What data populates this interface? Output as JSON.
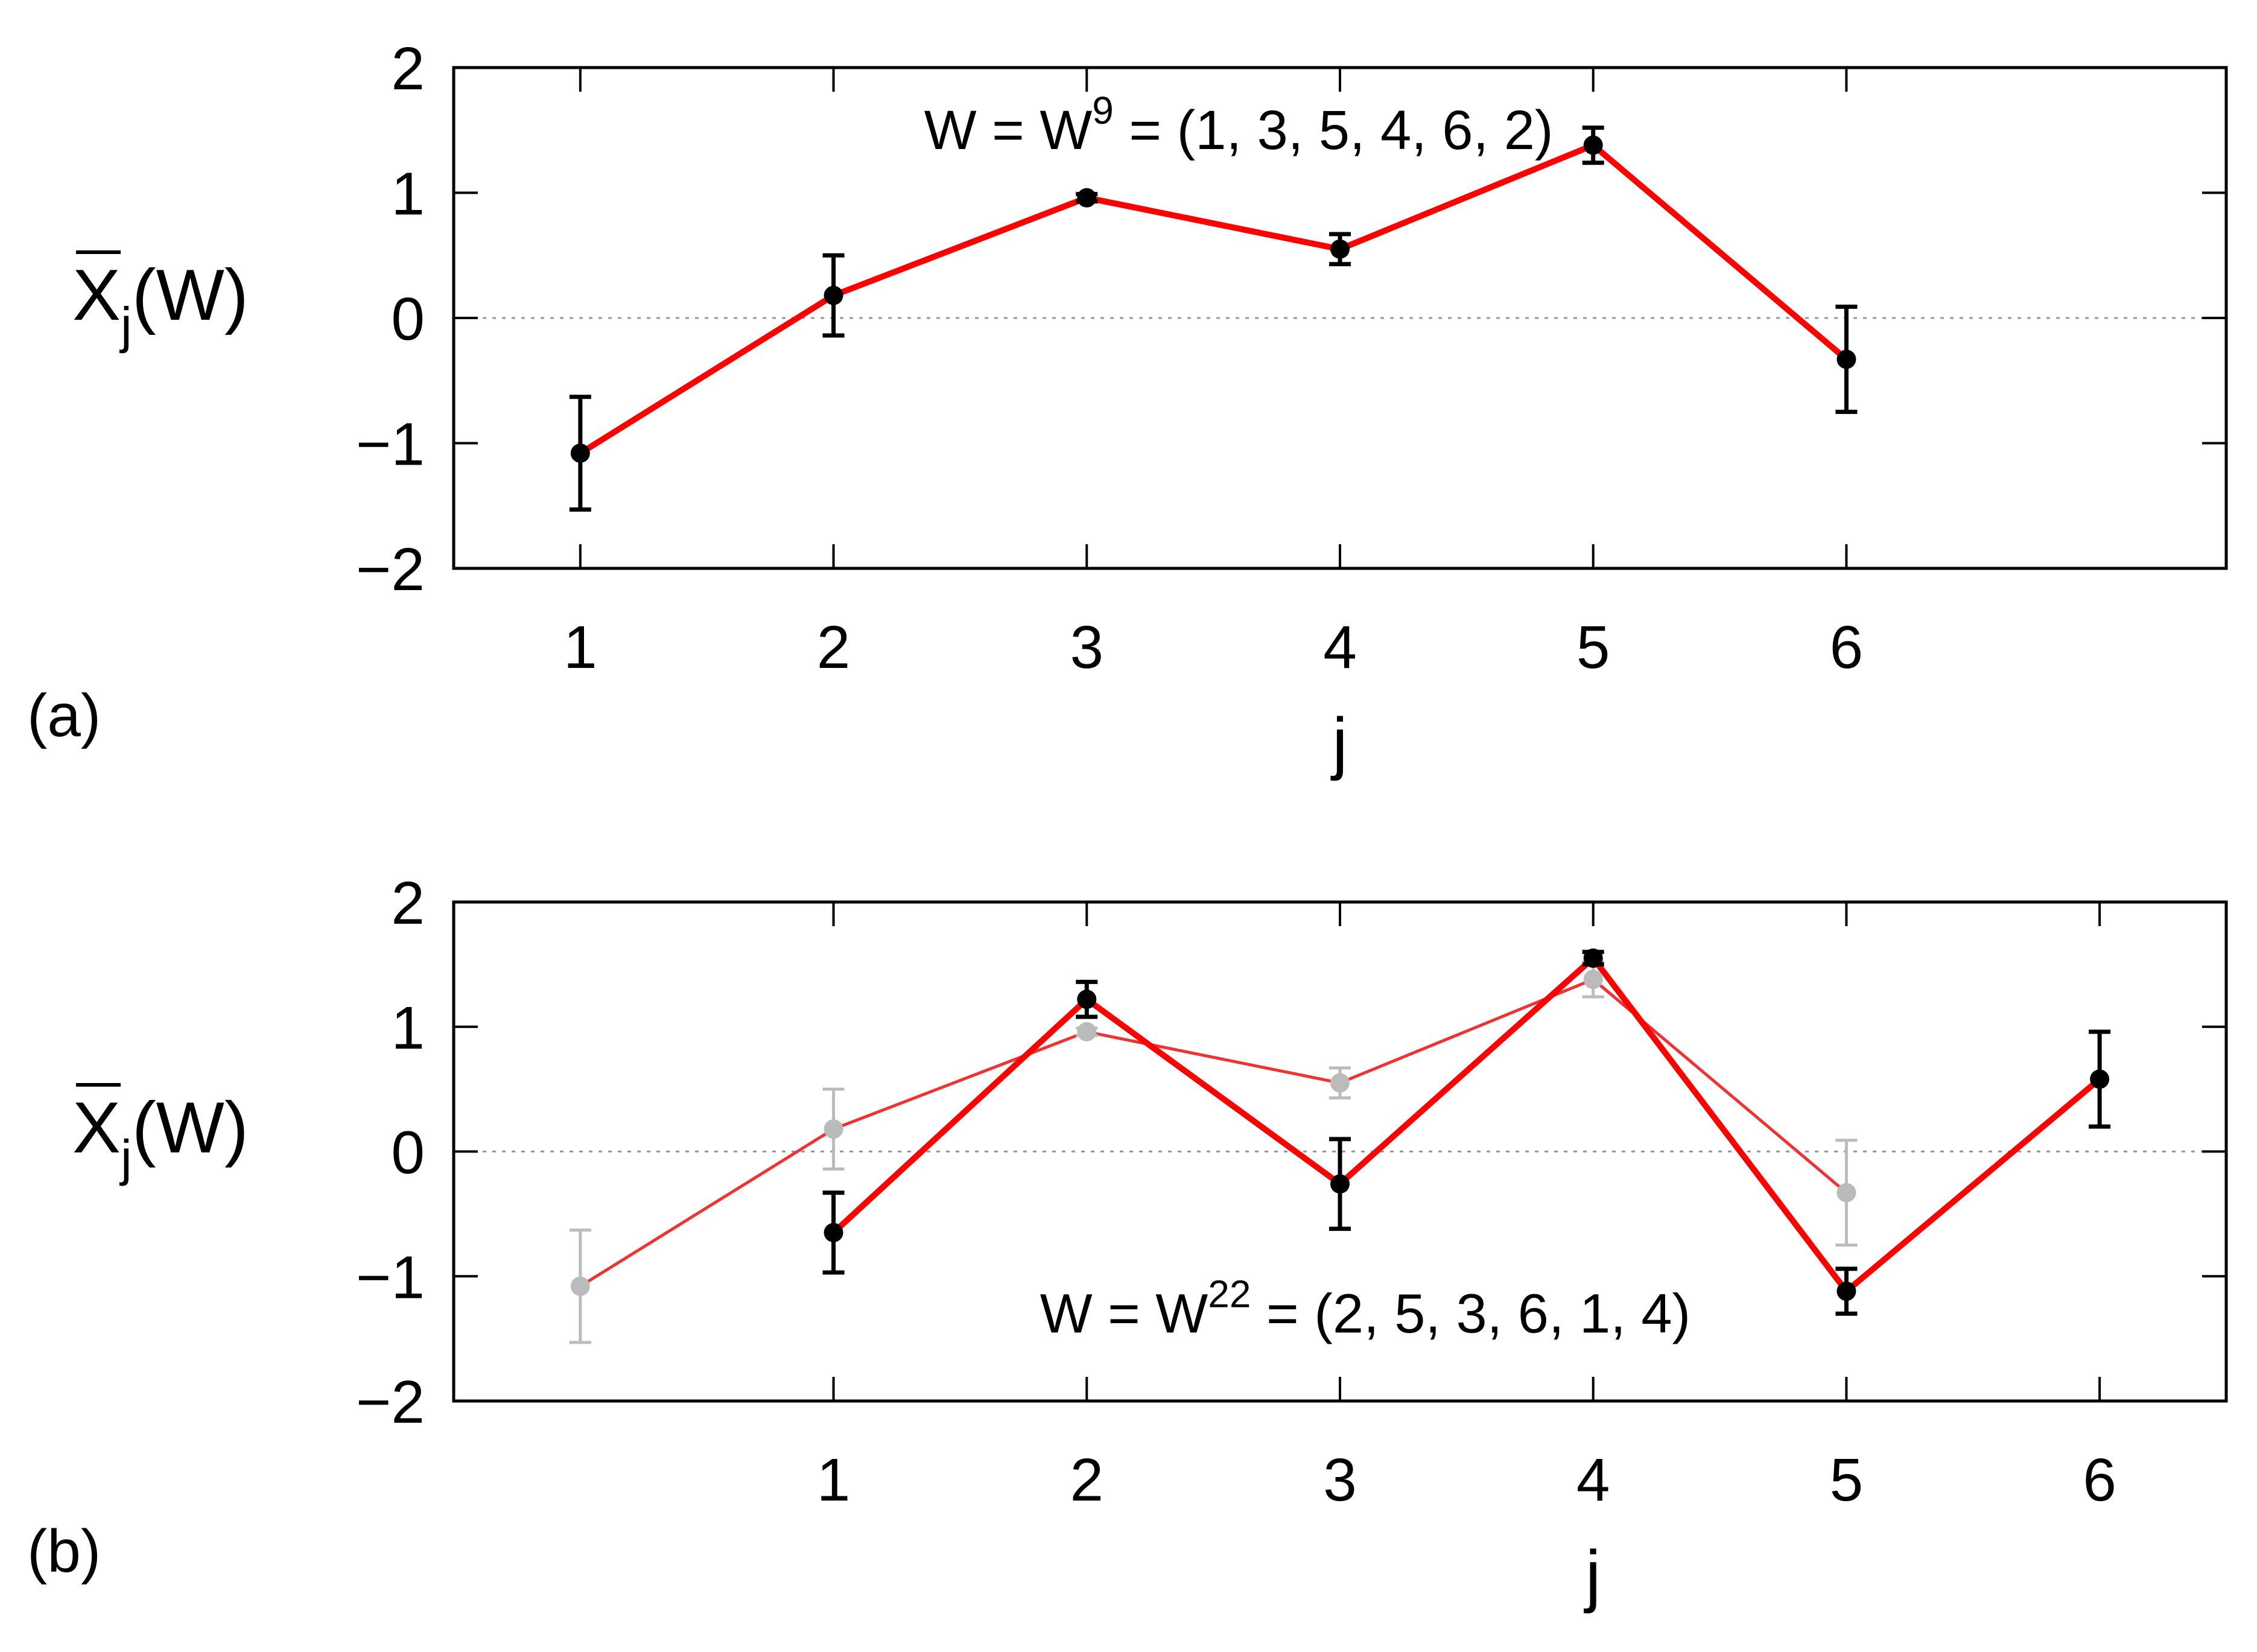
{
  "chart_data": [
    {
      "type": "line",
      "panel_label": "(a)",
      "xlabel": "j",
      "ylabel": {
        "bar_letter": "X",
        "subscript": "j",
        "rest": "(W)"
      },
      "ylim": [
        -2,
        2
      ],
      "yticks": [
        -2,
        -1,
        0,
        1,
        2
      ],
      "ytick_labels": [
        "−2",
        "−1",
        "0",
        "1",
        "2"
      ],
      "xlim": [
        0.5,
        7.5
      ],
      "xticks": [
        1,
        2,
        3,
        4,
        5,
        6
      ],
      "xtick_labels": [
        "1",
        "2",
        "3",
        "4",
        "5",
        "6"
      ],
      "zero_line": true,
      "annotation": {
        "prefix": "W = W",
        "sup": "9",
        "suffix": " = (1, 3, 5, 4, 6, 2)",
        "x": 3.6,
        "y": 1.35
      },
      "series": [
        {
          "style": "primary",
          "color": "#ff0000",
          "marker_color": "#000000",
          "x": [
            1,
            2,
            3,
            4,
            5,
            6
          ],
          "values": [
            -1.08,
            0.18,
            0.96,
            0.55,
            1.38,
            -0.33
          ],
          "errors": [
            0.45,
            0.32,
            0.03,
            0.12,
            0.14,
            0.42
          ]
        }
      ]
    },
    {
      "type": "line",
      "panel_label": "(b)",
      "xlabel": "j",
      "ylabel": {
        "bar_letter": "X",
        "subscript": "j",
        "rest": "(W)"
      },
      "ylim": [
        -2,
        2
      ],
      "yticks": [
        -2,
        -1,
        0,
        1,
        2
      ],
      "ytick_labels": [
        "−2",
        "−1",
        "0",
        "1",
        "2"
      ],
      "xlim": [
        -0.5,
        6.5
      ],
      "xticks": [
        1,
        2,
        3,
        4,
        5,
        6
      ],
      "xtick_labels": [
        "1",
        "2",
        "3",
        "4",
        "5",
        "6"
      ],
      "zero_line": true,
      "annotation": {
        "prefix": "W = W",
        "sup": "22",
        "suffix": " = (2, 5, 3, 6, 1, 4)",
        "x": 3.1,
        "y": -1.45
      },
      "series": [
        {
          "style": "secondary",
          "color": "#ee3333",
          "marker_color": "#bbbbbb",
          "x": [
            0,
            1,
            2,
            3,
            4,
            5
          ],
          "values": [
            -1.08,
            0.18,
            0.96,
            0.55,
            1.38,
            -0.33
          ],
          "errors": [
            0.45,
            0.32,
            0.03,
            0.12,
            0.14,
            0.42
          ]
        },
        {
          "style": "primary",
          "color": "#ff0000",
          "marker_color": "#000000",
          "x": [
            1,
            2,
            3,
            4,
            5,
            6
          ],
          "values": [
            -0.65,
            1.22,
            -0.26,
            1.55,
            -1.12,
            0.58
          ],
          "errors": [
            0.32,
            0.14,
            0.36,
            0.05,
            0.18,
            0.38
          ]
        }
      ]
    }
  ]
}
